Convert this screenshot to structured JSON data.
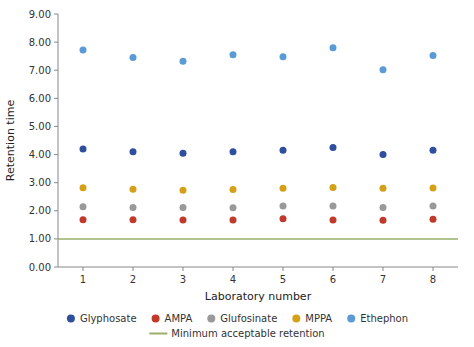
{
  "chart_data": {
    "type": "scatter",
    "xlabel": "Laboratory number",
    "ylabel": "Retention time",
    "x": [
      1,
      2,
      3,
      4,
      5,
      6,
      7,
      8
    ],
    "series": [
      {
        "name": "Glyphosate",
        "color": "#2e4e9e",
        "values": [
          4.2,
          4.1,
          4.05,
          4.1,
          4.15,
          4.25,
          4.0,
          4.15
        ]
      },
      {
        "name": "AMPA",
        "color": "#c0392b",
        "values": [
          1.68,
          1.68,
          1.67,
          1.67,
          1.72,
          1.67,
          1.66,
          1.7
        ]
      },
      {
        "name": "Glufosinate",
        "color": "#999999",
        "values": [
          2.14,
          2.12,
          2.12,
          2.11,
          2.17,
          2.17,
          2.12,
          2.17
        ]
      },
      {
        "name": "MPPA",
        "color": "#d4a017",
        "values": [
          2.82,
          2.77,
          2.73,
          2.76,
          2.8,
          2.83,
          2.8,
          2.81
        ]
      },
      {
        "name": "Ethephon",
        "color": "#5b9bd5",
        "values": [
          7.72,
          7.45,
          7.32,
          7.55,
          7.48,
          7.8,
          7.02,
          7.52
        ]
      }
    ],
    "lines": [
      {
        "name": "Minimum acceptable retention",
        "color": "#9aaf6a",
        "value": 1.0
      }
    ],
    "xlim": [
      0.5,
      8.5
    ],
    "xticks": [
      1,
      2,
      3,
      4,
      5,
      6,
      7,
      8
    ],
    "ylim": [
      0.0,
      9.0
    ],
    "yticks": [
      {
        "value": 0.0,
        "label": "0.00"
      },
      {
        "value": 1.0,
        "label": "1.00"
      },
      {
        "value": 2.0,
        "label": "2.00"
      },
      {
        "value": 3.0,
        "label": "3.00"
      },
      {
        "value": 4.0,
        "label": "4.00"
      },
      {
        "value": 5.0,
        "label": "5.00"
      },
      {
        "value": 6.0,
        "label": "6.00"
      },
      {
        "value": 7.0,
        "label": "7.00"
      },
      {
        "value": 8.0,
        "label": "8.00"
      },
      {
        "value": 9.0,
        "label": "9.00"
      }
    ],
    "grid": false,
    "legend": "bottom"
  }
}
